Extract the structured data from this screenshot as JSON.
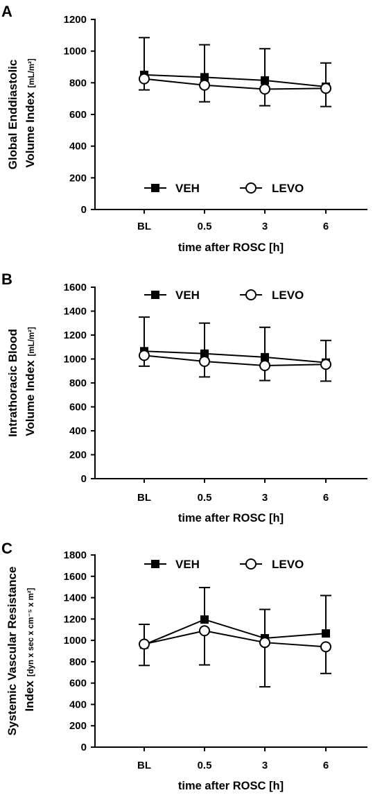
{
  "chart_data": [
    {
      "type": "line",
      "panel_label": "A",
      "ylabel_line1": "Global Enddiastolic",
      "ylabel_line2": "Volume Index",
      "ylabel_unit": "[mL/m²]",
      "xlabel": "time after ROSC [h]",
      "categories": [
        "BL",
        "0.5",
        "3",
        "6"
      ],
      "ylim": [
        0,
        1200
      ],
      "yticks": [
        0,
        200,
        400,
        600,
        800,
        1000,
        1200
      ],
      "legend_position": "bottom",
      "series": [
        {
          "name": "VEH",
          "marker": "filled-square",
          "values": [
            850,
            835,
            815,
            775
          ],
          "error_up": [
            235,
            205,
            200,
            150
          ],
          "error_down": [
            0,
            0,
            0,
            0
          ]
        },
        {
          "name": "LEVO",
          "marker": "open-circle",
          "values": [
            825,
            785,
            760,
            765
          ],
          "error_up": [
            0,
            0,
            0,
            0
          ],
          "error_down": [
            70,
            105,
            105,
            115
          ]
        }
      ]
    },
    {
      "type": "line",
      "panel_label": "B",
      "ylabel_line1": "Intrathoracic Blood",
      "ylabel_line2": "Volume Index",
      "ylabel_unit": "[mL/m²]",
      "xlabel": "time after ROSC [h]",
      "categories": [
        "BL",
        "0.5",
        "3",
        "6"
      ],
      "ylim": [
        0,
        1600
      ],
      "yticks": [
        0,
        200,
        400,
        600,
        800,
        1000,
        1200,
        1400,
        1600
      ],
      "legend_position": "top",
      "series": [
        {
          "name": "VEH",
          "marker": "filled-square",
          "values": [
            1065,
            1045,
            1015,
            970
          ],
          "error_up": [
            285,
            255,
            250,
            185
          ],
          "error_down": [
            0,
            0,
            0,
            0
          ]
        },
        {
          "name": "LEVO",
          "marker": "open-circle",
          "values": [
            1030,
            980,
            945,
            955
          ],
          "error_up": [
            0,
            0,
            0,
            0
          ],
          "error_down": [
            90,
            130,
            125,
            140
          ]
        }
      ]
    },
    {
      "type": "line",
      "panel_label": "C",
      "ylabel_line1": "Systemic Vascular Resistance",
      "ylabel_line2": "Index",
      "ylabel_unit": "[dyn x sec x cm⁻⁵ x m²]",
      "xlabel": "time after ROSC [h]",
      "categories": [
        "BL",
        "0.5",
        "3",
        "6"
      ],
      "ylim": [
        0,
        1800
      ],
      "yticks": [
        0,
        200,
        400,
        600,
        800,
        1000,
        1200,
        1400,
        1600,
        1800
      ],
      "legend_position": "top",
      "series": [
        {
          "name": "VEH",
          "marker": "filled-square",
          "values": [
            960,
            1195,
            1020,
            1065
          ],
          "error_up": [
            190,
            300,
            270,
            355
          ],
          "error_down": [
            0,
            0,
            0,
            0
          ]
        },
        {
          "name": "LEVO",
          "marker": "open-circle",
          "values": [
            965,
            1090,
            980,
            940
          ],
          "error_up": [
            0,
            0,
            0,
            0
          ],
          "error_down": [
            200,
            320,
            415,
            250
          ]
        }
      ]
    }
  ]
}
